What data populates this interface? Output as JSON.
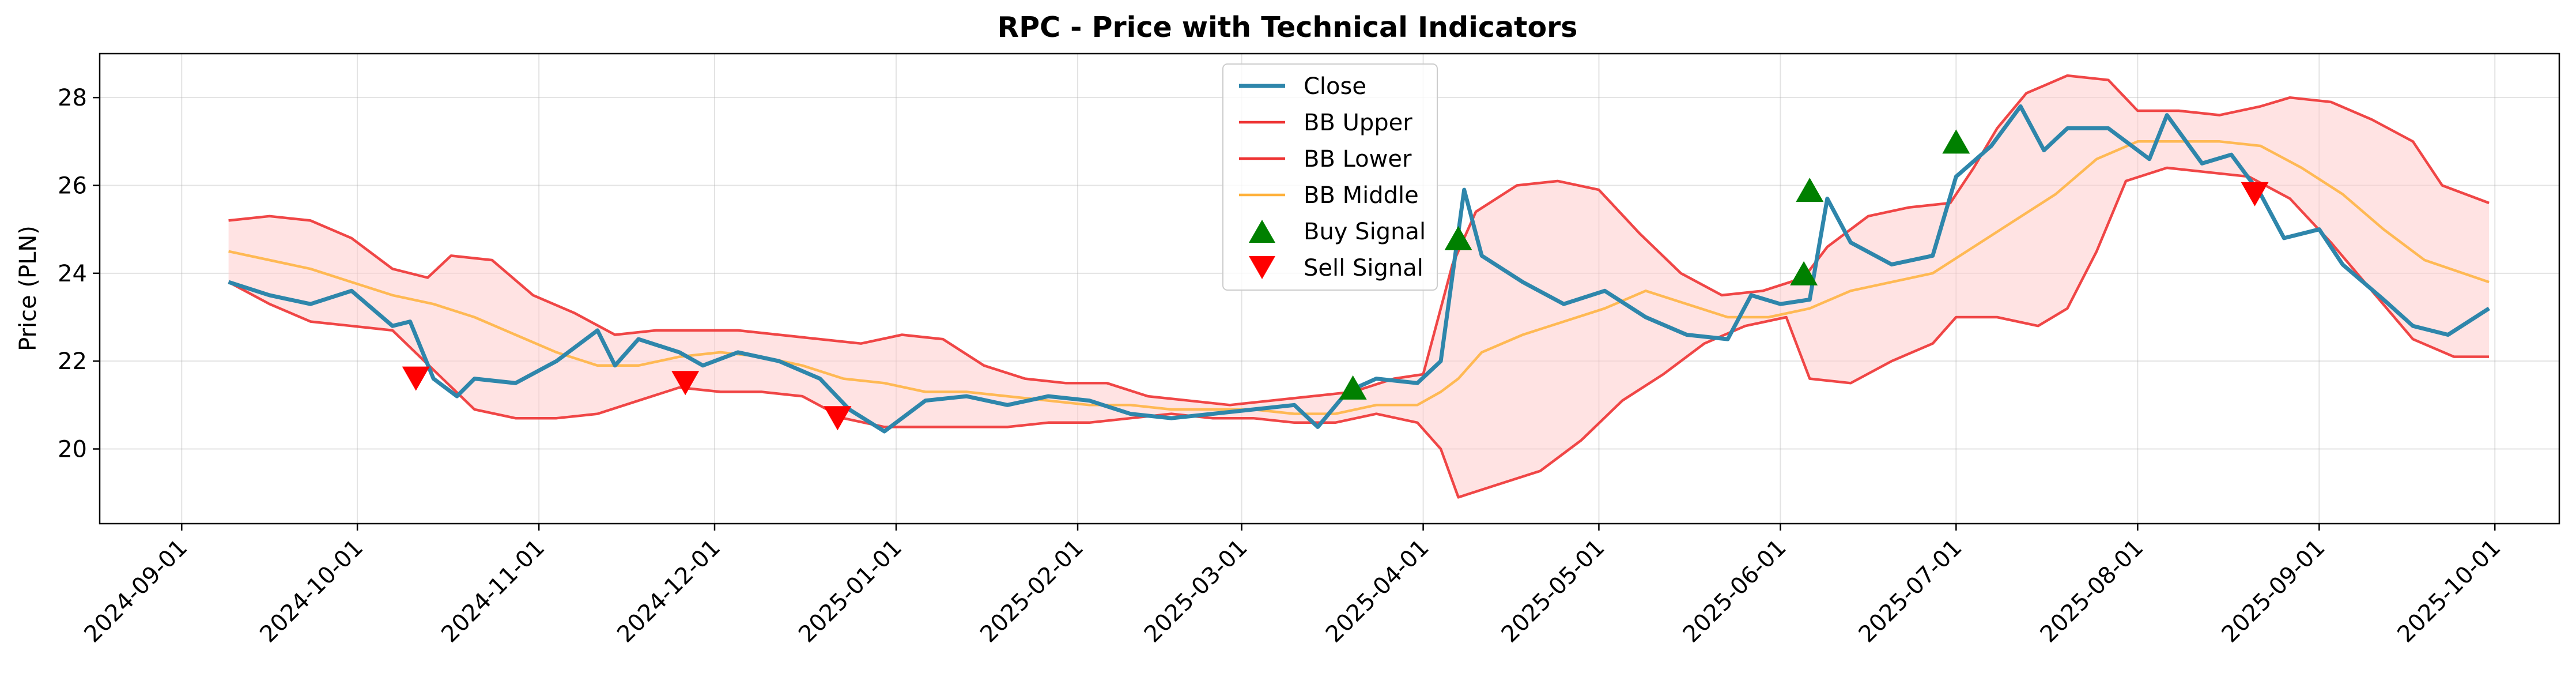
{
  "chart_data": {
    "type": "line",
    "title": "RPC - Price with Technical Indicators",
    "xlabel": "",
    "ylabel": "Price (PLN)",
    "xlim": [
      "2024-08-18",
      "2025-10-12"
    ],
    "ylim": [
      18.3,
      29.0
    ],
    "x_ticks": [
      "2024-09-01",
      "2024-10-01",
      "2024-11-01",
      "2024-12-01",
      "2025-01-01",
      "2025-02-01",
      "2025-03-01",
      "2025-04-01",
      "2025-05-01",
      "2025-06-01",
      "2025-07-01",
      "2025-08-01",
      "2025-09-01",
      "2025-10-01"
    ],
    "y_ticks": [
      20,
      22,
      24,
      26,
      28
    ],
    "grid": true,
    "legend_position": "top-center",
    "colors": {
      "close": "#2e86ab",
      "bb_upper": "#ee3333",
      "bb_lower": "#ee3333",
      "bb_middle": "#ffb13b",
      "band_fill": "#ffcccc",
      "buy": "#008000",
      "sell": "#ff0000"
    },
    "series": [
      {
        "name": "Close",
        "key": "close",
        "points": [
          [
            "2024-09-09",
            23.8
          ],
          [
            "2024-09-16",
            23.5
          ],
          [
            "2024-09-23",
            23.3
          ],
          [
            "2024-09-30",
            23.6
          ],
          [
            "2024-10-07",
            22.8
          ],
          [
            "2024-10-10",
            22.9
          ],
          [
            "2024-10-14",
            21.6
          ],
          [
            "2024-10-18",
            21.2
          ],
          [
            "2024-10-21",
            21.6
          ],
          [
            "2024-10-28",
            21.5
          ],
          [
            "2024-11-04",
            22.0
          ],
          [
            "2024-11-11",
            22.7
          ],
          [
            "2024-11-14",
            21.9
          ],
          [
            "2024-11-18",
            22.5
          ],
          [
            "2024-11-25",
            22.2
          ],
          [
            "2024-11-29",
            21.9
          ],
          [
            "2024-12-05",
            22.2
          ],
          [
            "2024-12-12",
            22.0
          ],
          [
            "2024-12-19",
            21.6
          ],
          [
            "2024-12-24",
            20.9
          ],
          [
            "2024-12-30",
            20.4
          ],
          [
            "2025-01-06",
            21.1
          ],
          [
            "2025-01-13",
            21.2
          ],
          [
            "2025-01-20",
            21.0
          ],
          [
            "2025-01-27",
            21.2
          ],
          [
            "2025-02-03",
            21.1
          ],
          [
            "2025-02-10",
            20.8
          ],
          [
            "2025-02-17",
            20.7
          ],
          [
            "2025-02-24",
            20.8
          ],
          [
            "2025-03-03",
            20.9
          ],
          [
            "2025-03-10",
            21.0
          ],
          [
            "2025-03-14",
            20.5
          ],
          [
            "2025-03-19",
            21.3
          ],
          [
            "2025-03-24",
            21.6
          ],
          [
            "2025-03-31",
            21.5
          ],
          [
            "2025-04-04",
            22.0
          ],
          [
            "2025-04-08",
            25.9
          ],
          [
            "2025-04-11",
            24.4
          ],
          [
            "2025-04-18",
            23.8
          ],
          [
            "2025-04-25",
            23.3
          ],
          [
            "2025-05-02",
            23.6
          ],
          [
            "2025-05-09",
            23.0
          ],
          [
            "2025-05-16",
            22.6
          ],
          [
            "2025-05-23",
            22.5
          ],
          [
            "2025-05-27",
            23.5
          ],
          [
            "2025-06-01",
            23.3
          ],
          [
            "2025-06-06",
            23.4
          ],
          [
            "2025-06-09",
            25.7
          ],
          [
            "2025-06-13",
            24.7
          ],
          [
            "2025-06-20",
            24.2
          ],
          [
            "2025-06-27",
            24.4
          ],
          [
            "2025-07-01",
            26.2
          ],
          [
            "2025-07-07",
            26.9
          ],
          [
            "2025-07-12",
            27.8
          ],
          [
            "2025-07-16",
            26.8
          ],
          [
            "2025-07-20",
            27.3
          ],
          [
            "2025-07-27",
            27.3
          ],
          [
            "2025-08-03",
            26.6
          ],
          [
            "2025-08-06",
            27.6
          ],
          [
            "2025-08-12",
            26.5
          ],
          [
            "2025-08-17",
            26.7
          ],
          [
            "2025-08-22",
            25.8
          ],
          [
            "2025-08-26",
            24.8
          ],
          [
            "2025-09-01",
            25.0
          ],
          [
            "2025-09-05",
            24.2
          ],
          [
            "2025-09-12",
            23.4
          ],
          [
            "2025-09-17",
            22.8
          ],
          [
            "2025-09-23",
            22.6
          ],
          [
            "2025-09-30",
            23.2
          ]
        ]
      },
      {
        "name": "BB Upper",
        "key": "bb_upper",
        "points": [
          [
            "2024-09-09",
            25.2
          ],
          [
            "2024-09-16",
            25.3
          ],
          [
            "2024-09-23",
            25.2
          ],
          [
            "2024-09-30",
            24.8
          ],
          [
            "2024-10-07",
            24.1
          ],
          [
            "2024-10-13",
            23.9
          ],
          [
            "2024-10-17",
            24.4
          ],
          [
            "2024-10-24",
            24.3
          ],
          [
            "2024-10-31",
            23.5
          ],
          [
            "2024-11-07",
            23.1
          ],
          [
            "2024-11-14",
            22.6
          ],
          [
            "2024-11-21",
            22.7
          ],
          [
            "2024-11-28",
            22.7
          ],
          [
            "2024-12-05",
            22.7
          ],
          [
            "2024-12-12",
            22.6
          ],
          [
            "2024-12-19",
            22.5
          ],
          [
            "2024-12-26",
            22.4
          ],
          [
            "2025-01-02",
            22.6
          ],
          [
            "2025-01-09",
            22.5
          ],
          [
            "2025-01-16",
            21.9
          ],
          [
            "2025-01-23",
            21.6
          ],
          [
            "2025-01-30",
            21.5
          ],
          [
            "2025-02-06",
            21.5
          ],
          [
            "2025-02-13",
            21.2
          ],
          [
            "2025-02-20",
            21.1
          ],
          [
            "2025-02-27",
            21.0
          ],
          [
            "2025-03-06",
            21.1
          ],
          [
            "2025-03-13",
            21.2
          ],
          [
            "2025-03-20",
            21.3
          ],
          [
            "2025-03-27",
            21.6
          ],
          [
            "2025-04-01",
            21.7
          ],
          [
            "2025-04-06",
            24.2
          ],
          [
            "2025-04-10",
            25.4
          ],
          [
            "2025-04-17",
            26.0
          ],
          [
            "2025-04-24",
            26.1
          ],
          [
            "2025-05-01",
            25.9
          ],
          [
            "2025-05-08",
            24.9
          ],
          [
            "2025-05-15",
            24.0
          ],
          [
            "2025-05-22",
            23.5
          ],
          [
            "2025-05-29",
            23.6
          ],
          [
            "2025-06-05",
            23.9
          ],
          [
            "2025-06-09",
            24.6
          ],
          [
            "2025-06-16",
            25.3
          ],
          [
            "2025-06-23",
            25.5
          ],
          [
            "2025-06-30",
            25.6
          ],
          [
            "2025-07-04",
            26.4
          ],
          [
            "2025-07-08",
            27.3
          ],
          [
            "2025-07-13",
            28.1
          ],
          [
            "2025-07-20",
            28.5
          ],
          [
            "2025-07-27",
            28.4
          ],
          [
            "2025-08-01",
            27.7
          ],
          [
            "2025-08-08",
            27.7
          ],
          [
            "2025-08-15",
            27.6
          ],
          [
            "2025-08-22",
            27.8
          ],
          [
            "2025-08-27",
            28.0
          ],
          [
            "2025-09-03",
            27.9
          ],
          [
            "2025-09-10",
            27.5
          ],
          [
            "2025-09-17",
            27.0
          ],
          [
            "2025-09-22",
            26.0
          ],
          [
            "2025-09-30",
            25.6
          ]
        ]
      },
      {
        "name": "BB Lower",
        "key": "bb_lower",
        "points": [
          [
            "2024-09-09",
            23.8
          ],
          [
            "2024-09-16",
            23.3
          ],
          [
            "2024-09-23",
            22.9
          ],
          [
            "2024-09-30",
            22.8
          ],
          [
            "2024-10-07",
            22.7
          ],
          [
            "2024-10-14",
            21.8
          ],
          [
            "2024-10-21",
            20.9
          ],
          [
            "2024-10-28",
            20.7
          ],
          [
            "2024-11-04",
            20.7
          ],
          [
            "2024-11-11",
            20.8
          ],
          [
            "2024-11-18",
            21.1
          ],
          [
            "2024-11-25",
            21.4
          ],
          [
            "2024-12-02",
            21.3
          ],
          [
            "2024-12-09",
            21.3
          ],
          [
            "2024-12-16",
            21.2
          ],
          [
            "2024-12-23",
            20.7
          ],
          [
            "2024-12-30",
            20.5
          ],
          [
            "2025-01-06",
            20.5
          ],
          [
            "2025-01-13",
            20.5
          ],
          [
            "2025-01-20",
            20.5
          ],
          [
            "2025-01-27",
            20.6
          ],
          [
            "2025-02-03",
            20.6
          ],
          [
            "2025-02-10",
            20.7
          ],
          [
            "2025-02-17",
            20.8
          ],
          [
            "2025-02-24",
            20.7
          ],
          [
            "2025-03-03",
            20.7
          ],
          [
            "2025-03-10",
            20.6
          ],
          [
            "2025-03-17",
            20.6
          ],
          [
            "2025-03-24",
            20.8
          ],
          [
            "2025-03-31",
            20.6
          ],
          [
            "2025-04-04",
            20.0
          ],
          [
            "2025-04-07",
            18.9
          ],
          [
            "2025-04-14",
            19.2
          ],
          [
            "2025-04-21",
            19.5
          ],
          [
            "2025-04-28",
            20.2
          ],
          [
            "2025-05-05",
            21.1
          ],
          [
            "2025-05-12",
            21.7
          ],
          [
            "2025-05-19",
            22.4
          ],
          [
            "2025-05-26",
            22.8
          ],
          [
            "2025-06-02",
            23.0
          ],
          [
            "2025-06-06",
            21.6
          ],
          [
            "2025-06-13",
            21.5
          ],
          [
            "2025-06-20",
            22.0
          ],
          [
            "2025-06-27",
            22.4
          ],
          [
            "2025-07-01",
            23.0
          ],
          [
            "2025-07-08",
            23.0
          ],
          [
            "2025-07-15",
            22.8
          ],
          [
            "2025-07-20",
            23.2
          ],
          [
            "2025-07-25",
            24.5
          ],
          [
            "2025-07-30",
            26.1
          ],
          [
            "2025-08-06",
            26.4
          ],
          [
            "2025-08-13",
            26.3
          ],
          [
            "2025-08-20",
            26.2
          ],
          [
            "2025-08-27",
            25.7
          ],
          [
            "2025-09-03",
            24.7
          ],
          [
            "2025-09-10",
            23.6
          ],
          [
            "2025-09-17",
            22.5
          ],
          [
            "2025-09-24",
            22.1
          ],
          [
            "2025-09-30",
            22.1
          ]
        ]
      },
      {
        "name": "BB Middle",
        "key": "bb_middle",
        "points": [
          [
            "2024-09-09",
            24.5
          ],
          [
            "2024-09-16",
            24.3
          ],
          [
            "2024-09-23",
            24.1
          ],
          [
            "2024-09-30",
            23.8
          ],
          [
            "2024-10-07",
            23.5
          ],
          [
            "2024-10-14",
            23.3
          ],
          [
            "2024-10-21",
            23.0
          ],
          [
            "2024-10-28",
            22.6
          ],
          [
            "2024-11-04",
            22.2
          ],
          [
            "2024-11-11",
            21.9
          ],
          [
            "2024-11-18",
            21.9
          ],
          [
            "2024-11-25",
            22.1
          ],
          [
            "2024-12-02",
            22.2
          ],
          [
            "2024-12-09",
            22.1
          ],
          [
            "2024-12-16",
            21.9
          ],
          [
            "2024-12-23",
            21.6
          ],
          [
            "2024-12-30",
            21.5
          ],
          [
            "2025-01-06",
            21.3
          ],
          [
            "2025-01-13",
            21.3
          ],
          [
            "2025-01-20",
            21.2
          ],
          [
            "2025-01-27",
            21.1
          ],
          [
            "2025-02-03",
            21.0
          ],
          [
            "2025-02-10",
            21.0
          ],
          [
            "2025-02-17",
            20.9
          ],
          [
            "2025-02-24",
            20.9
          ],
          [
            "2025-03-03",
            20.9
          ],
          [
            "2025-03-10",
            20.8
          ],
          [
            "2025-03-17",
            20.8
          ],
          [
            "2025-03-24",
            21.0
          ],
          [
            "2025-03-31",
            21.0
          ],
          [
            "2025-04-04",
            21.3
          ],
          [
            "2025-04-07",
            21.6
          ],
          [
            "2025-04-11",
            22.2
          ],
          [
            "2025-04-18",
            22.6
          ],
          [
            "2025-04-25",
            22.9
          ],
          [
            "2025-05-02",
            23.2
          ],
          [
            "2025-05-09",
            23.6
          ],
          [
            "2025-05-16",
            23.3
          ],
          [
            "2025-05-23",
            23.0
          ],
          [
            "2025-05-30",
            23.0
          ],
          [
            "2025-06-06",
            23.2
          ],
          [
            "2025-06-13",
            23.6
          ],
          [
            "2025-06-20",
            23.8
          ],
          [
            "2025-06-27",
            24.0
          ],
          [
            "2025-07-04",
            24.6
          ],
          [
            "2025-07-11",
            25.2
          ],
          [
            "2025-07-18",
            25.8
          ],
          [
            "2025-07-25",
            26.6
          ],
          [
            "2025-08-01",
            27.0
          ],
          [
            "2025-08-08",
            27.0
          ],
          [
            "2025-08-15",
            27.0
          ],
          [
            "2025-08-22",
            26.9
          ],
          [
            "2025-08-29",
            26.4
          ],
          [
            "2025-09-05",
            25.8
          ],
          [
            "2025-09-12",
            25.0
          ],
          [
            "2025-09-19",
            24.3
          ],
          [
            "2025-09-30",
            23.8
          ]
        ]
      }
    ],
    "signals": [
      {
        "name": "Buy Signal",
        "key": "buy",
        "points": [
          [
            "2025-03-20",
            21.4
          ],
          [
            "2025-04-07",
            24.8
          ],
          [
            "2025-06-05",
            24.0
          ],
          [
            "2025-06-06",
            25.9
          ],
          [
            "2025-07-01",
            27.0
          ]
        ]
      },
      {
        "name": "Sell Signal",
        "key": "sell",
        "points": [
          [
            "2024-10-11",
            21.6
          ],
          [
            "2024-11-26",
            21.5
          ],
          [
            "2024-12-22",
            20.7
          ],
          [
            "2025-08-21",
            25.8
          ]
        ]
      }
    ]
  }
}
